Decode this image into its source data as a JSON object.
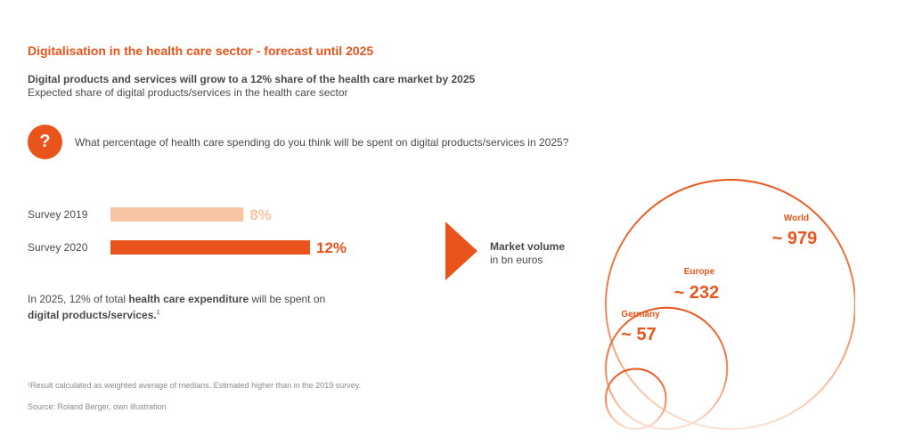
{
  "title": "Digitalisation in the health care sector - forecast until 2025",
  "headline": "Digital products and services will grow to a 12% share of the health care market by 2025",
  "subheadline": "Expected share of digital products/services in the health care sector",
  "question": {
    "icon": "question-mark-icon",
    "symbol": "?",
    "text": "What percentage of health care spending do you think will be spent on digital products/services in 2025?"
  },
  "note": {
    "part1": "In 2025, 12% of total ",
    "bold1": "health care expenditure",
    "part2": " will be spent on ",
    "bold2": "digital products/services.",
    "sup": "1"
  },
  "footnote": "¹Result calculated as weighted average of medians. Estimated higher than in the 2019 survey.",
  "source": "Source: Roland Berger, own illustration",
  "market": {
    "title": "Market volume",
    "unit": "in bn euros"
  },
  "colors": {
    "accent": "#e8541c",
    "light_accent": "#f7c4a4",
    "text": "#4a4a4a"
  },
  "chart_data": [
    {
      "type": "bar",
      "orientation": "horizontal",
      "categories": [
        "Survey 2019",
        "Survey 2020"
      ],
      "values": [
        8,
        12
      ],
      "labels": [
        "8%",
        "12%"
      ],
      "unit": "%",
      "xlim": [
        0,
        12
      ],
      "colors": [
        "#f7c4a4",
        "#e8541c"
      ],
      "grid": false
    },
    {
      "type": "nested-circles",
      "categories": [
        "World",
        "Europe",
        "Germany"
      ],
      "values": [
        979,
        232,
        57
      ],
      "labels": [
        "~ 979",
        "~ 232",
        "~ 57"
      ],
      "unit": "bn euros"
    }
  ]
}
